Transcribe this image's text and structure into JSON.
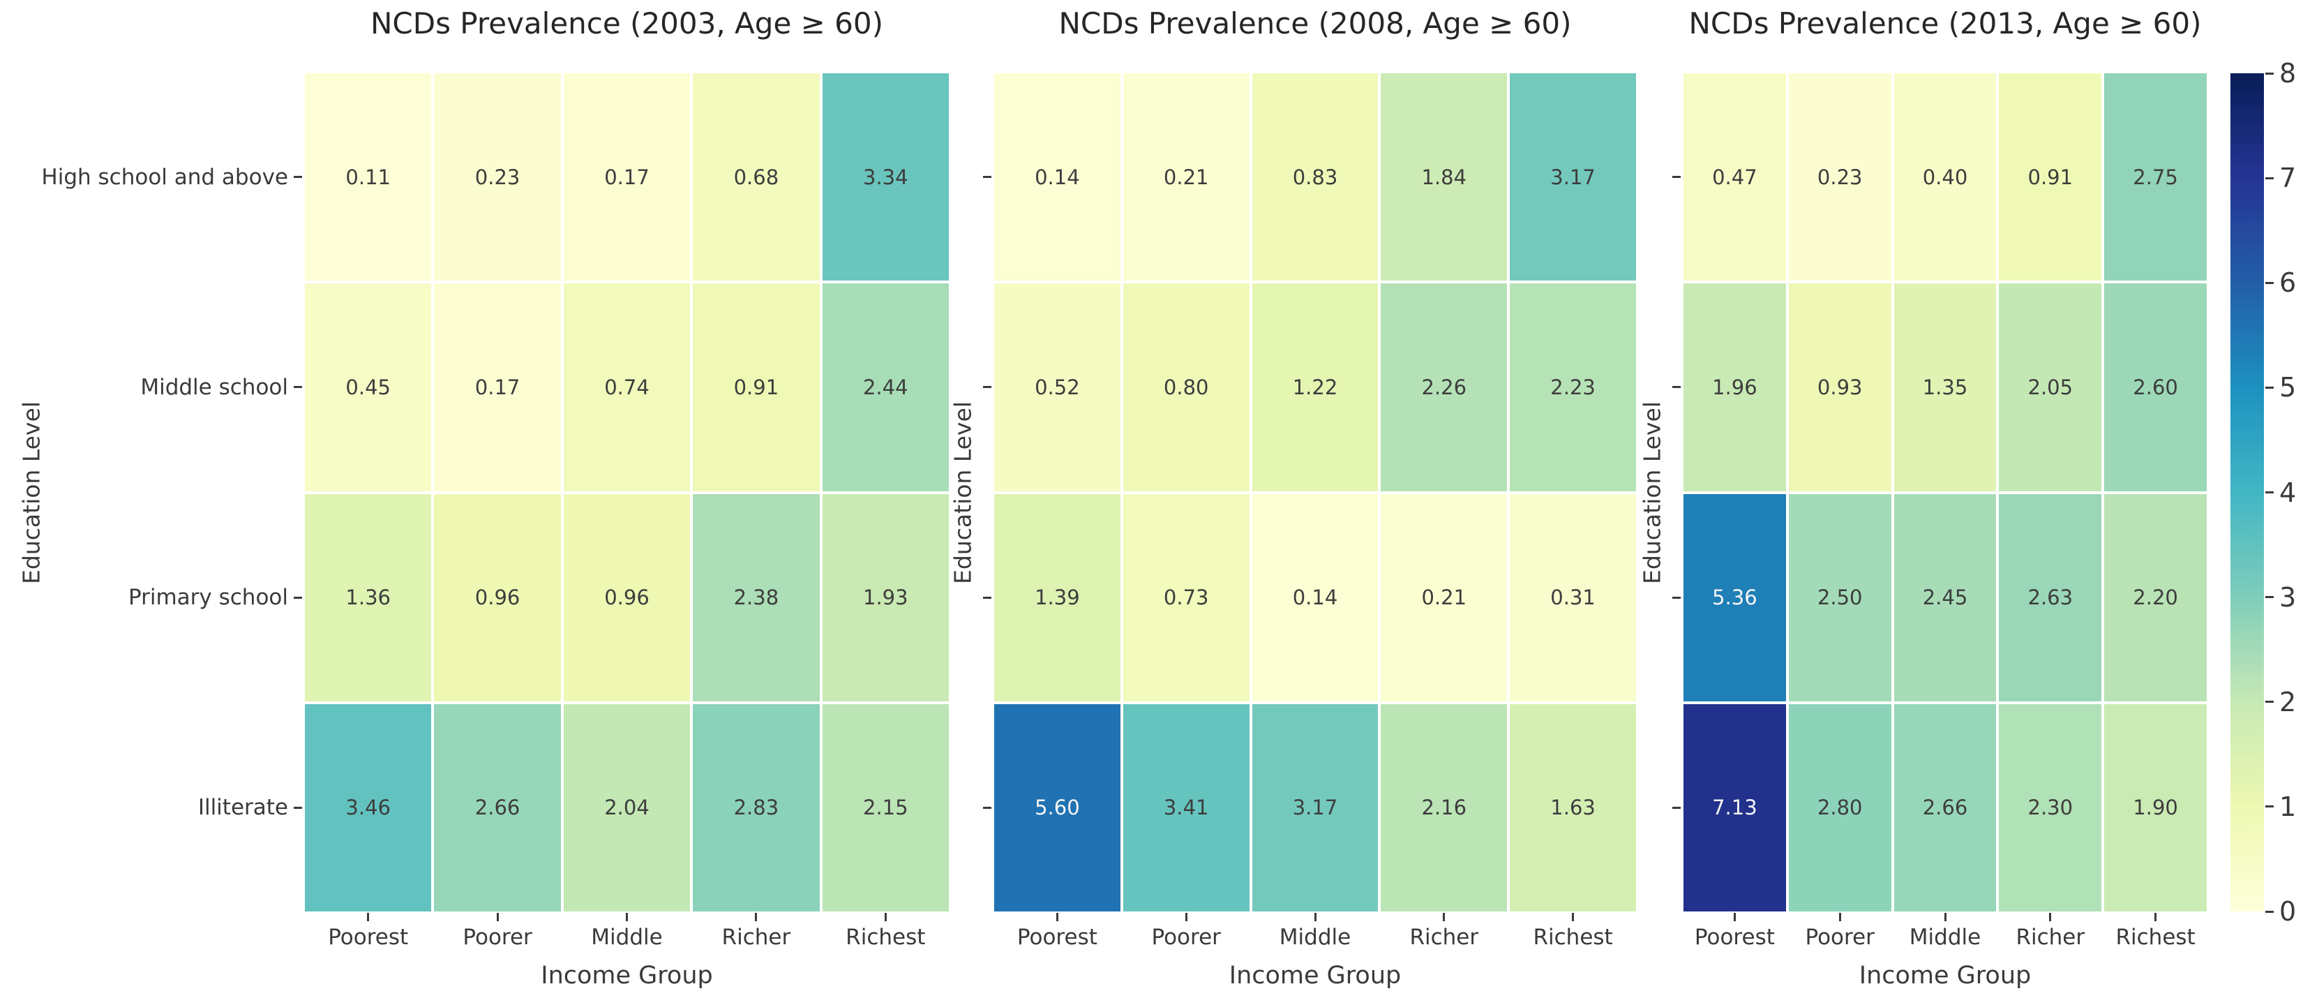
{
  "figure": {
    "background": "#ffffff",
    "text_color": "#3a3a3a"
  },
  "chart_data": [
    {
      "type": "heatmap",
      "title": "NCDs Prevalence (2003, Age ≥ 60)",
      "xlabel": "Income Group",
      "ylabel": "Education Level",
      "x_categories": [
        "Poorest",
        "Poorer",
        "Middle",
        "Richer",
        "Richest"
      ],
      "y_categories": [
        "High school and above",
        "Middle school",
        "Primary school",
        "Illiterate"
      ],
      "values": [
        [
          0.11,
          0.23,
          0.17,
          0.68,
          3.34
        ],
        [
          0.45,
          0.17,
          0.74,
          0.91,
          2.44
        ],
        [
          1.36,
          0.96,
          0.96,
          2.38,
          1.93
        ],
        [
          3.46,
          2.66,
          2.04,
          2.83,
          2.15
        ]
      ],
      "value_format_decimals": 2,
      "show_y_tick_labels": true,
      "vmin": 0,
      "vmax": 8
    },
    {
      "type": "heatmap",
      "title": "NCDs Prevalence (2008, Age ≥ 60)",
      "xlabel": "Income Group",
      "ylabel": "Education Level",
      "x_categories": [
        "Poorest",
        "Poorer",
        "Middle",
        "Richer",
        "Richest"
      ],
      "y_categories": [
        "High school and above",
        "Middle school",
        "Primary school",
        "Illiterate"
      ],
      "values": [
        [
          0.14,
          0.21,
          0.83,
          1.84,
          3.17
        ],
        [
          0.52,
          0.8,
          1.22,
          2.26,
          2.23
        ],
        [
          1.39,
          0.73,
          0.14,
          0.21,
          0.31
        ],
        [
          5.6,
          3.41,
          3.17,
          2.16,
          1.63
        ]
      ],
      "value_format_decimals": 2,
      "show_y_tick_labels": false,
      "vmin": 0,
      "vmax": 8
    },
    {
      "type": "heatmap",
      "title": "NCDs Prevalence (2013, Age ≥ 60)",
      "xlabel": "Income Group",
      "ylabel": "Education Level",
      "x_categories": [
        "Poorest",
        "Poorer",
        "Middle",
        "Richer",
        "Richest"
      ],
      "y_categories": [
        "High school and above",
        "Middle school",
        "Primary school",
        "Illiterate"
      ],
      "values": [
        [
          0.47,
          0.23,
          0.4,
          0.91,
          2.75
        ],
        [
          1.96,
          0.93,
          1.35,
          2.05,
          2.6
        ],
        [
          5.36,
          2.5,
          2.45,
          2.63,
          2.2
        ],
        [
          7.13,
          2.8,
          2.66,
          2.3,
          1.9
        ]
      ],
      "value_format_decimals": 2,
      "show_y_tick_labels": false,
      "vmin": 0,
      "vmax": 8
    }
  ],
  "colorbar": {
    "min": 0,
    "max": 8,
    "ticks": [
      0,
      1,
      2,
      3,
      4,
      5,
      6,
      7,
      8
    ],
    "colormap": "YlGnBu",
    "gradient_stops": [
      "#ffffd9",
      "#edf8b1",
      "#c7e9b4",
      "#7fcdbb",
      "#41b6c4",
      "#1d91c0",
      "#225ea8",
      "#253494",
      "#081d58"
    ],
    "annotation_dark_text": "#3d3d3d",
    "annotation_light_text": "#f5f5f5"
  }
}
